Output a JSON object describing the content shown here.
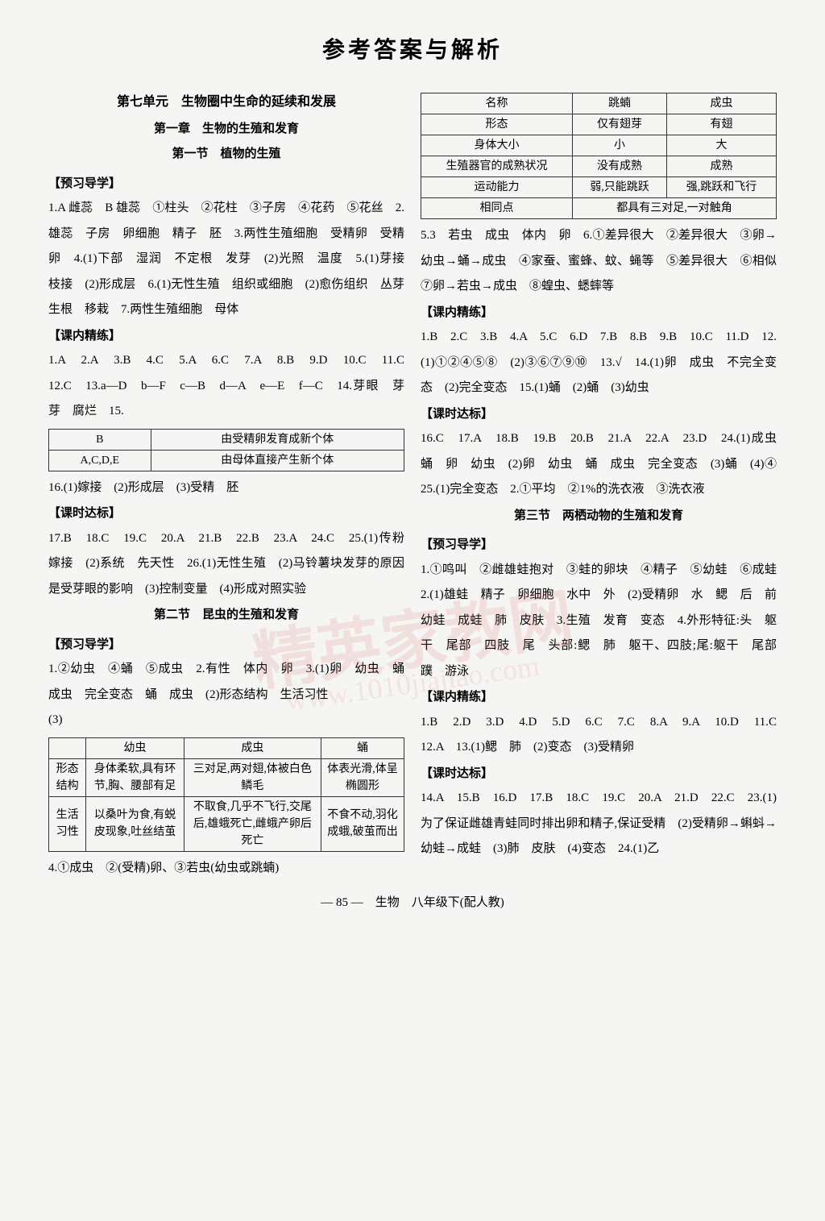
{
  "title": "参考答案与解析",
  "watermark_text": "精英家教网",
  "watermark_url": "www.1010jiajiao.com",
  "footer": "— 85 —　生物　八年级下(配人教)",
  "left": {
    "unit": "第七单元　生物圈中生命的延续和发展",
    "chapter": "第一章　生物的生殖和发育",
    "section1": "第一节　植物的生殖",
    "yuxi_header": "【预习导学】",
    "yuxi1": "1.A 雌蕊　B 雄蕊　①柱头　②花柱　③子房　④花药　⑤花丝　2.雄蕊　子房　卵细胞　精子　胚　3.两性生殖细胞　受精卵　受精卵　4.(1)下部　湿润　不定根　发芽　(2)光照　温度　5.(1)芽接　枝接　(2)形成层　6.(1)无性生殖　组织或细胞　(2)愈伤组织　丛芽　生根　移栽　7.两性生殖细胞　母体",
    "kenei_header": "【课内精练】",
    "kenei1": "1.A　2.A　3.B　4.C　5.A　6.C　7.A　8.B　9.D　10.C　11.C　12.C　13.a—D　b—F　c—B　d—A　e—E　f—C　14.芽眼　芽　芽　腐烂　15.",
    "table15": {
      "r1c1": "B",
      "r1c2": "由受精卵发育成新个体",
      "r2c1": "A,C,D,E",
      "r2c2": "由母体直接产生新个体"
    },
    "after_table15": "16.(1)嫁接　(2)形成层　(3)受精　胚",
    "keshi_header": "【课时达标】",
    "keshi1": "17.B　18.C　19.C　20.A　21.B　22.B　23.A　24.C　25.(1)传粉　嫁接　(2)系统　先天性　26.(1)无性生殖　(2)马铃薯块发芽的原因是受芽眼的影响　(3)控制变量　(4)形成对照实验",
    "section2": "第二节　昆虫的生殖和发育",
    "yuxi2_header": "【预习导学】",
    "yuxi2": "1.②幼虫　④蛹　⑤成虫　2.有性　体内　卵　3.(1)卵　幼虫　蛹　成虫　完全变态　蛹　成虫　(2)形态结构　生活习性",
    "q3_label": "(3)",
    "table3": {
      "h1": "幼虫",
      "h2": "成虫",
      "h3": "蛹",
      "r1_label": "形态结构",
      "r1c1": "身体柔软,具有环节,胸、腰部有足",
      "r1c2": "三对足,两对翅,体被白色鳞毛",
      "r1c3": "体表光滑,体呈椭圆形",
      "r2_label": "生活习性",
      "r2c1": "以桑叶为食,有蜕皮现象,吐丝结茧",
      "r2c2": "不取食,几乎不飞行,交尾后,雄蛾死亡,雌蛾产卵后死亡",
      "r2c3": "不食不动,羽化成蛾,破茧而出"
    },
    "after_table3": "4.①成虫　②(受精)卵、③若虫(幼虫或跳蝻)"
  },
  "right": {
    "table_top": {
      "h1": "名称",
      "h2": "跳蝻",
      "h3": "成虫",
      "r1_label": "形态",
      "r1c1": "仅有翅芽",
      "r1c2": "有翅",
      "r2_label": "身体大小",
      "r2c1": "小",
      "r2c2": "大",
      "r3_label": "生殖器官的成熟状况",
      "r3c1": "没有成熟",
      "r3c2": "成熟",
      "r4_label": "运动能力",
      "r4c1": "弱,只能跳跃",
      "r4c2": "强,跳跃和飞行",
      "r5_label": "相同点",
      "r5_span": "都具有三对足,一对触角"
    },
    "after_top_table": "5.3　若虫　成虫　体内　卵　6.①差异很大　②差异很大　③卵→幼虫→蛹→成虫　④家蚕、蜜蜂、蚊、蝇等　⑤差异很大　⑥相似　⑦卵→若虫→成虫　⑧蝗虫、蟋蟀等",
    "kenei2_header": "【课内精练】",
    "kenei2": "1.B　2.C　3.B　4.A　5.C　6.D　7.B　8.B　9.B　10.C　11.D　12.(1)①②④⑤⑧　(2)③⑥⑦⑨⑩　13.√　14.(1)卵　成虫　不完全变态　(2)完全变态　15.(1)蛹　(2)蛹　(3)幼虫",
    "keshi2_header": "【课时达标】",
    "keshi2": "16.C　17.A　18.B　19.B　20.B　21.A　22.A　23.D　24.(1)成虫　蛹　卵　幼虫　(2)卵　幼虫　蛹　成虫　完全变态　(3)蛹　(4)④　25.(1)完全变态　2.①平均　②1%的洗衣液　③洗衣液",
    "section3": "第三节　两栖动物的生殖和发育",
    "yuxi3_header": "【预习导学】",
    "yuxi3": "1.①鸣叫　②雌雄蛙抱对　③蛙的卵块　④精子　⑤幼蛙　⑥成蛙　2.(1)雄蛙　精子　卵细胞　水中　外　(2)受精卵　水　鳃　后　前　幼蛙　成蛙　肺　皮肤　3.生殖　发育　变态　4.外形特征:头　躯干　尾部　四肢　尾　头部:鳃　肺　躯干、四肢;尾:躯干　尾部　蹼　游泳",
    "kenei3_header": "【课内精练】",
    "kenei3": "1.B　2.D　3.D　4.D　5.D　6.C　7.C　8.A　9.A　10.D　11.C　12.A　13.(1)鳃　肺　(2)变态　(3)受精卵",
    "keshi3_header": "【课时达标】",
    "keshi3": "14.A　15.B　16.D　17.B　18.C　19.C　20.A　21.D　22.C　23.(1)为了保证雌雄青蛙同时排出卵和精子,保证受精　(2)受精卵→蝌蚪→幼蛙→成蛙　(3)肺　皮肤　(4)变态　24.(1)乙"
  }
}
